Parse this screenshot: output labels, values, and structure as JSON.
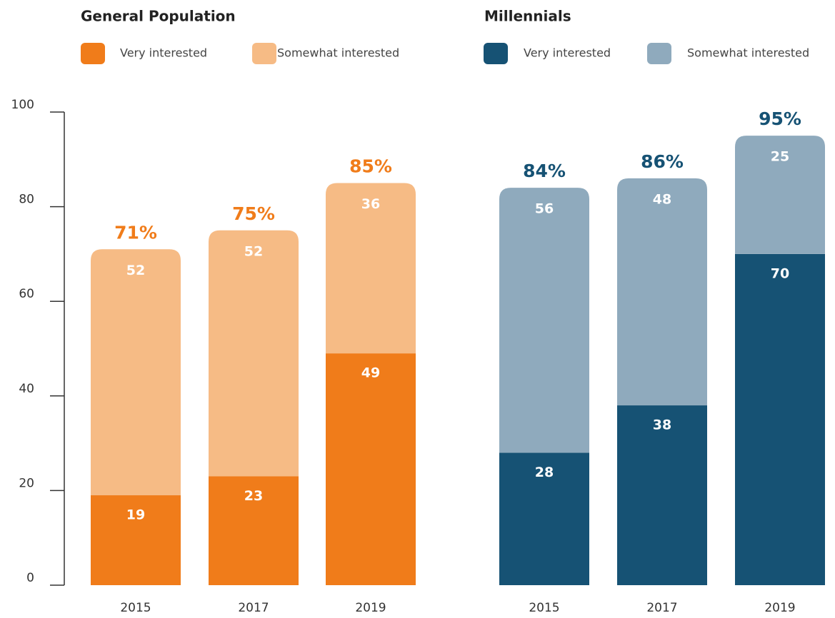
{
  "chart_data": [
    {
      "type": "bar",
      "stacked": true,
      "title": "General Population",
      "categories": [
        "2015",
        "2017",
        "2019"
      ],
      "series": [
        {
          "name": "Very interested",
          "color": "#f07c1a",
          "values": [
            19,
            23,
            49
          ]
        },
        {
          "name": "Somewhat interested",
          "color": "#f6bb85",
          "values": [
            52,
            52,
            36
          ]
        }
      ],
      "totals": [
        71,
        75,
        85
      ],
      "total_labels": [
        "71%",
        "75%",
        "85%"
      ],
      "total_color": "#f07c1a",
      "ylim": [
        0,
        100
      ],
      "yticks": [
        0,
        20,
        40,
        60,
        80,
        100
      ]
    },
    {
      "type": "bar",
      "stacked": true,
      "title": "Millennials",
      "categories": [
        "2015",
        "2017",
        "2019"
      ],
      "series": [
        {
          "name": "Very interested",
          "color": "#165274",
          "values": [
            28,
            38,
            70
          ]
        },
        {
          "name": "Somewhat interested",
          "color": "#8faabd",
          "values": [
            56,
            48,
            25
          ]
        }
      ],
      "totals": [
        84,
        86,
        95
      ],
      "total_labels": [
        "84%",
        "86%",
        "95%"
      ],
      "total_color": "#165274",
      "ylim": [
        0,
        100
      ]
    }
  ]
}
